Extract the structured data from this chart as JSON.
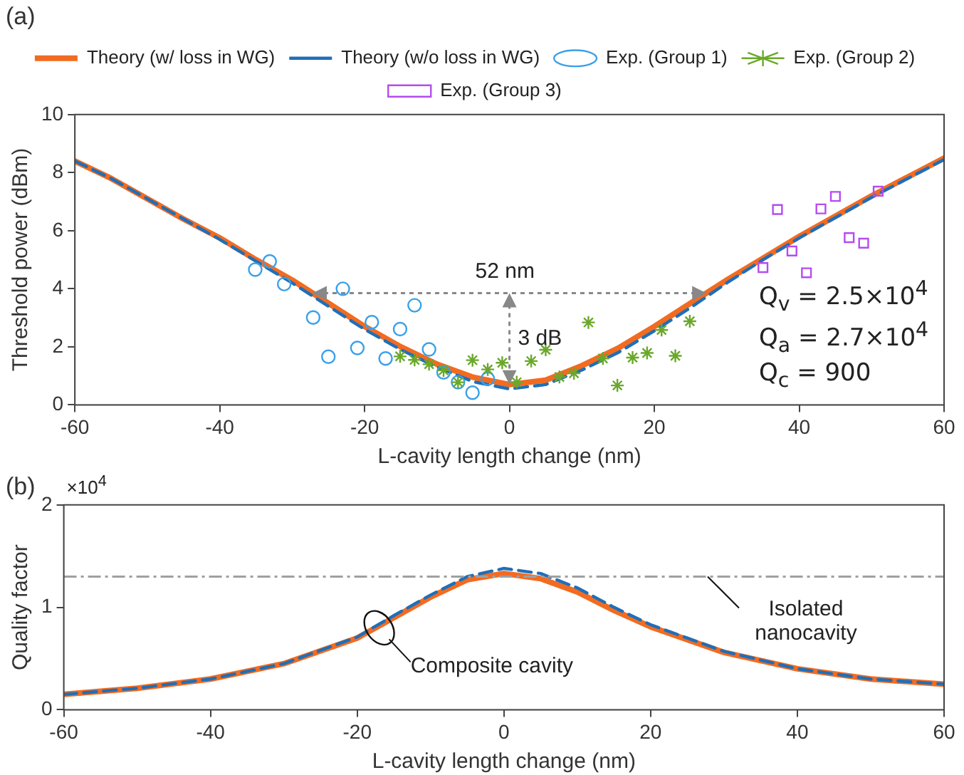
{
  "chart_data": [
    {
      "type": "line",
      "title": "(a)",
      "xlabel": "L-cavity length change (nm)",
      "ylabel": "Threshold power (dBm)",
      "xlim": [
        -60,
        60
      ],
      "xticks": [
        -60,
        -40,
        -20,
        0,
        20,
        40,
        60
      ],
      "ylim": [
        0,
        10
      ],
      "yticks": [
        0,
        2,
        4,
        6,
        8,
        10
      ],
      "legend": "top",
      "grid": false,
      "series": [
        {
          "name": "Theory (w/ loss in WG)",
          "color": "#f26b21",
          "line_style": "solid",
          "marker": "none",
          "x": [
            -60,
            -55,
            -50,
            -45,
            -40,
            -35,
            -30,
            -25,
            -20,
            -15,
            -10,
            -5,
            0,
            5,
            10,
            15,
            20,
            25,
            30,
            35,
            40,
            45,
            50,
            55,
            60
          ],
          "values": [
            8.4,
            7.8,
            7.1,
            6.4,
            5.75,
            5.0,
            4.3,
            3.5,
            2.7,
            2.0,
            1.4,
            0.95,
            0.7,
            0.85,
            1.35,
            1.95,
            2.7,
            3.5,
            4.3,
            5.05,
            5.8,
            6.5,
            7.2,
            7.85,
            8.5
          ]
        },
        {
          "name": "Theory (w/o loss in WG)",
          "color": "#1f6fb8",
          "line_style": "dashed",
          "marker": "none",
          "x": [
            -60,
            -55,
            -50,
            -45,
            -40,
            -35,
            -30,
            -25,
            -20,
            -15,
            -10,
            -5,
            0,
            5,
            10,
            15,
            20,
            25,
            30,
            35,
            40,
            45,
            50,
            55,
            60
          ],
          "values": [
            8.4,
            7.8,
            7.1,
            6.4,
            5.7,
            4.95,
            4.2,
            3.4,
            2.6,
            1.9,
            1.3,
            0.8,
            0.55,
            0.7,
            1.2,
            1.8,
            2.55,
            3.35,
            4.2,
            5.0,
            5.75,
            6.45,
            7.15,
            7.8,
            8.45
          ]
        },
        {
          "name": "Exp. (Group 1)",
          "type": "scatter",
          "color": "#3aa0e8",
          "marker": "circle",
          "x": [
            -35.1,
            -33.1,
            -31.1,
            -27.1,
            -25,
            -23,
            -21,
            -19,
            -17.1,
            -15.1,
            -13.1,
            -11.1,
            -9.1,
            -7.1,
            -5.1,
            -3
          ],
          "values": [
            4.66,
            4.94,
            4.16,
            3.01,
            1.66,
            4.0,
            1.96,
            2.85,
            1.6,
            2.61,
            3.43,
            1.91,
            1.12,
            0.78,
            0.42,
            0.9
          ]
        },
        {
          "name": "Exp. (Group 2)",
          "type": "scatter",
          "color": "#6aa82a",
          "marker": "cross",
          "x": [
            -15.1,
            -13.1,
            -11.1,
            -9.1,
            -7.1,
            -5.1,
            -3,
            -1,
            1,
            3,
            5,
            6.9,
            8.9,
            10.9,
            12.9,
            14.9,
            17,
            19,
            21,
            22.9,
            24.9
          ],
          "values": [
            1.67,
            1.55,
            1.4,
            1.19,
            0.78,
            1.54,
            1.22,
            1.45,
            0.78,
            1.51,
            1.9,
            0.96,
            1.09,
            2.84,
            1.6,
            0.67,
            1.63,
            1.79,
            2.58,
            1.69,
            2.88
          ]
        },
        {
          "name": "Exp. (Group 3)",
          "type": "scatter",
          "color": "#b44cf0",
          "marker": "square",
          "x": [
            35,
            37,
            39,
            41,
            43,
            45,
            46.9,
            48.9,
            50.9
          ],
          "values": [
            4.73,
            6.73,
            5.3,
            4.55,
            6.75,
            7.18,
            5.76,
            5.57,
            7.36
          ]
        }
      ],
      "annotations": [
        "52 nm",
        {
          "text": "3 dB",
          "x": 0,
          "y": 0.7
        },
        "Q$_{v}$ = 2.5×10$^{4}$",
        "Q$_{a}$ = 2.7×10$^{4}$",
        "Q$_{c}$ = 900"
      ]
    },
    {
      "type": "line",
      "title": "(b)",
      "xlabel": "L-cavity length change (nm)",
      "ylabel": "Quality factor",
      "xlim": [
        -60,
        60
      ],
      "xticks": [
        -60,
        -40,
        -20,
        0,
        20,
        40,
        60
      ],
      "ylim": [
        0,
        2
      ],
      "yticks": [
        0,
        1,
        2
      ],
      "grid": false,
      "series": [
        {
          "color": "#f26b21",
          "line_style": "solid",
          "x": [
            -60,
            -50,
            -40,
            -30,
            -20,
            -15,
            -10,
            -5,
            0,
            5,
            10,
            15,
            20,
            30,
            40,
            50,
            60
          ],
          "values": [
            0.15,
            0.21,
            0.3,
            0.45,
            0.7,
            0.9,
            1.1,
            1.27,
            1.33,
            1.28,
            1.15,
            0.97,
            0.81,
            0.56,
            0.4,
            0.3,
            0.25
          ]
        },
        {
          "color": "#1f6fb8",
          "line_style": "dashed",
          "x": [
            -60,
            -50,
            -40,
            -30,
            -20,
            -15,
            -10,
            -5,
            0,
            5,
            10,
            15,
            20,
            30,
            40,
            50,
            60
          ],
          "values": [
            0.15,
            0.21,
            0.3,
            0.45,
            0.71,
            0.92,
            1.12,
            1.3,
            1.38,
            1.33,
            1.19,
            1.0,
            0.83,
            0.57,
            0.4,
            0.3,
            0.25
          ]
        }
      ],
      "ref_lines": [
        {
          "axis": "y",
          "value": 1.3,
          "label": "Isolated nanocavity",
          "color": "#a0a0a0",
          "line_style": "dashdot"
        }
      ],
      "annotations": [
        "×10$^{4}$",
        {
          "text": "Composite cavity",
          "x": -17,
          "y": 0.8
        }
      ]
    }
  ]
}
